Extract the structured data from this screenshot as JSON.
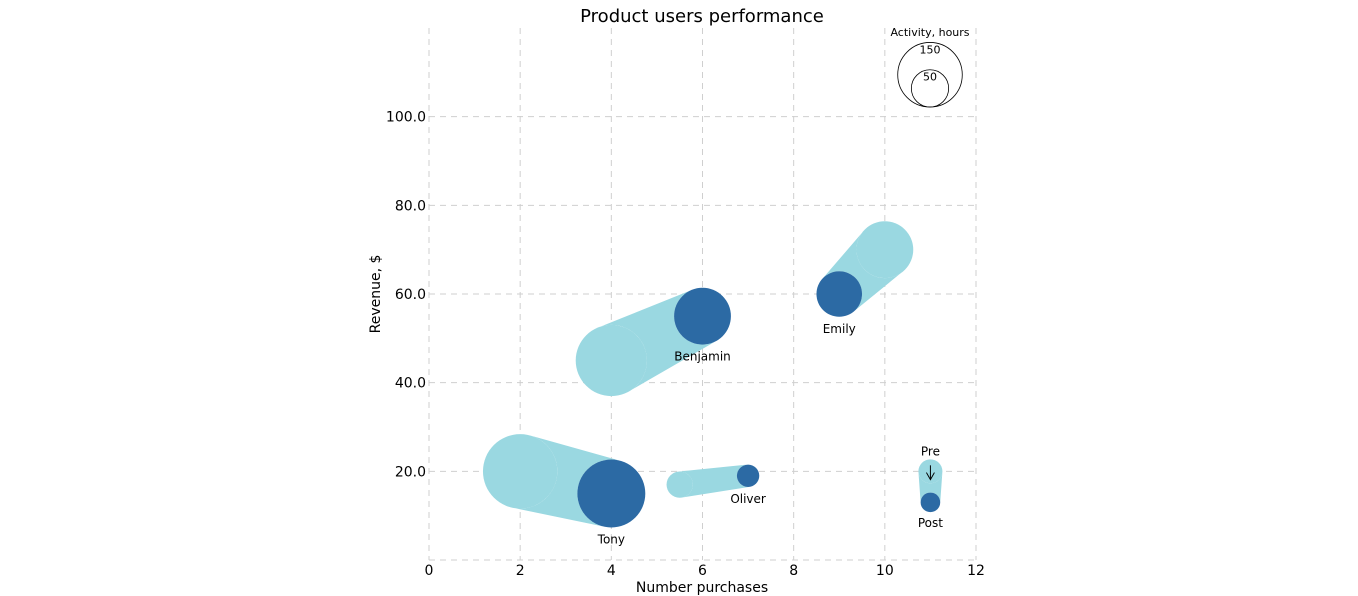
{
  "chart_data": {
    "type": "scatter",
    "title": "Product users performance",
    "xlabel": "Number purchases",
    "ylabel": "Revenue, $",
    "xlim": [
      0,
      12
    ],
    "ylim": [
      0,
      120
    ],
    "x_ticks": [
      0,
      2,
      4,
      6,
      8,
      10,
      12
    ],
    "x_tick_labels": [
      "0",
      "2",
      "4",
      "6",
      "8",
      "10",
      "12"
    ],
    "y_ticks": [
      20,
      40,
      60,
      80,
      100
    ],
    "y_tick_labels": [
      "20.0",
      "40.0",
      "60.0",
      "80.0",
      "100.0"
    ],
    "grid": true,
    "colors": {
      "pre": "#9ad8e1",
      "post": "#2c6aa4"
    },
    "series": [
      {
        "name": "Tony",
        "pre": {
          "x": 2,
          "y": 20,
          "activity": 144
        },
        "post": {
          "x": 4,
          "y": 15,
          "activity": 120
        }
      },
      {
        "name": "Benjamin",
        "pre": {
          "x": 4,
          "y": 45,
          "activity": 132
        },
        "post": {
          "x": 6,
          "y": 55,
          "activity": 84
        }
      },
      {
        "name": "Oliver",
        "pre": {
          "x": 5.5,
          "y": 17,
          "activity": 18
        },
        "post": {
          "x": 7,
          "y": 19,
          "activity": 13
        }
      },
      {
        "name": "Emily",
        "pre": {
          "x": 10,
          "y": 70,
          "activity": 84
        },
        "post": {
          "x": 9,
          "y": 60,
          "activity": 54
        }
      }
    ],
    "legend": {
      "title": "Activity, hours",
      "sizes": [
        150,
        50
      ],
      "size_labels": [
        "150",
        "50"
      ],
      "placement": "top-right"
    },
    "direction_key": {
      "pre_label": "Pre",
      "post_label": "Post",
      "pre": {
        "x": 11,
        "y": 20,
        "activity": 15
      },
      "post": {
        "x": 11,
        "y": 13,
        "activity": 10
      }
    }
  }
}
